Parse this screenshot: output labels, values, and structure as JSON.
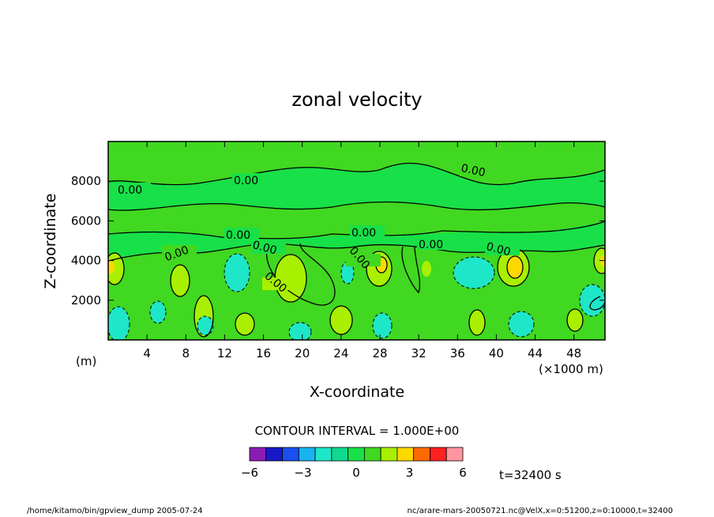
{
  "chart_data": {
    "type": "heatmap",
    "title": "zonal velocity",
    "xlabel": "X-coordinate",
    "ylabel": "Z-coordinate",
    "x_unit": "(×1000 m)",
    "y_unit": "(m)",
    "x_ticks": [
      4,
      8,
      12,
      16,
      20,
      24,
      28,
      32,
      36,
      40,
      44,
      48
    ],
    "y_ticks": [
      2000,
      4000,
      6000,
      8000
    ],
    "xlim": [
      0,
      51.2
    ],
    "ylim": [
      0,
      10000
    ],
    "contour_interval_text": "CONTOUR INTERVAL = 1.000E+00",
    "contour_label": "0.00",
    "colorbar": {
      "ticks": [
        "−6",
        "−3",
        "0",
        "3",
        "6"
      ],
      "colors": [
        "#8a1cb4",
        "#1818c8",
        "#1a4ff0",
        "#18b4f0",
        "#1ee6c8",
        "#10d890",
        "#18e048",
        "#40d820",
        "#a8f000",
        "#ffd800",
        "#ff6a00",
        "#ff2020",
        "#ff96a0"
      ],
      "range": [
        -6,
        6
      ]
    },
    "time_label": "t=32400 s",
    "grid": false
  },
  "footer": {
    "left": "/home/kitamo/bin/gpview_dump  2005-07-24",
    "right": "nc/arare-mars-20050721.nc@VelX,x=0:51200,z=0:10000,t=32400"
  }
}
